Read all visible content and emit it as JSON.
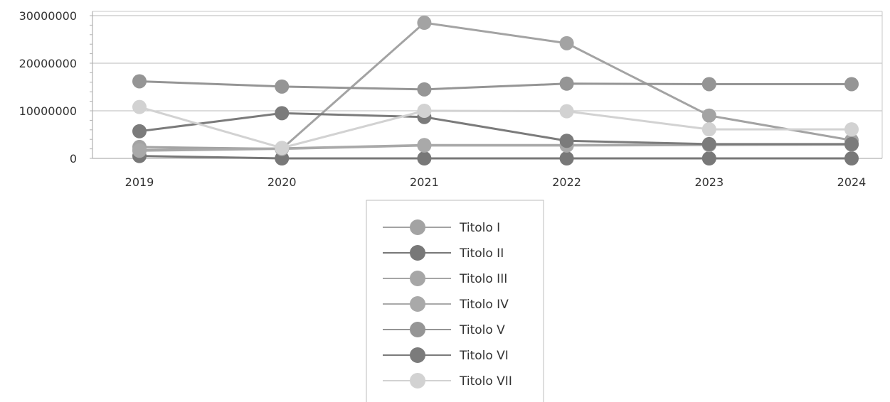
{
  "chart_data": {
    "type": "line",
    "x": [
      "2019",
      "2020",
      "2021",
      "2022",
      "2023",
      "2024"
    ],
    "ylim": [
      0,
      30000000
    ],
    "yticks": [
      "0",
      "10000000",
      "20000000",
      "30000000"
    ],
    "grid": true,
    "legend_position": "bottom",
    "series": [
      {
        "name": "Titolo I",
        "color": "#a3a3a3",
        "values": [
          2400000,
          2000000,
          28500000,
          24200000,
          9000000,
          3800000
        ]
      },
      {
        "name": "Titolo II",
        "color": "#787878",
        "values": [
          500000,
          0,
          0,
          0,
          0,
          0
        ]
      },
      {
        "name": "Titolo III",
        "color": "#a6a6a6",
        "values": [
          1800000,
          2100000,
          2800000,
          2800000,
          2900000,
          3000000
        ]
      },
      {
        "name": "Titolo IV",
        "color": "#a9a9a9",
        "values": [
          1600000,
          2000000,
          2700000,
          2700000,
          2800000,
          2900000
        ]
      },
      {
        "name": "Titolo V",
        "color": "#959595",
        "values": [
          16200000,
          15100000,
          14500000,
          15700000,
          15600000,
          15600000
        ]
      },
      {
        "name": "Titolo VI",
        "color": "#7b7b7b",
        "values": [
          5700000,
          9500000,
          8700000,
          3700000,
          3000000,
          3000000
        ]
      },
      {
        "name": "Titolo VII",
        "color": "#d2d2d2",
        "values": [
          10800000,
          2200000,
          10000000,
          9900000,
          6100000,
          6100000
        ]
      }
    ]
  }
}
